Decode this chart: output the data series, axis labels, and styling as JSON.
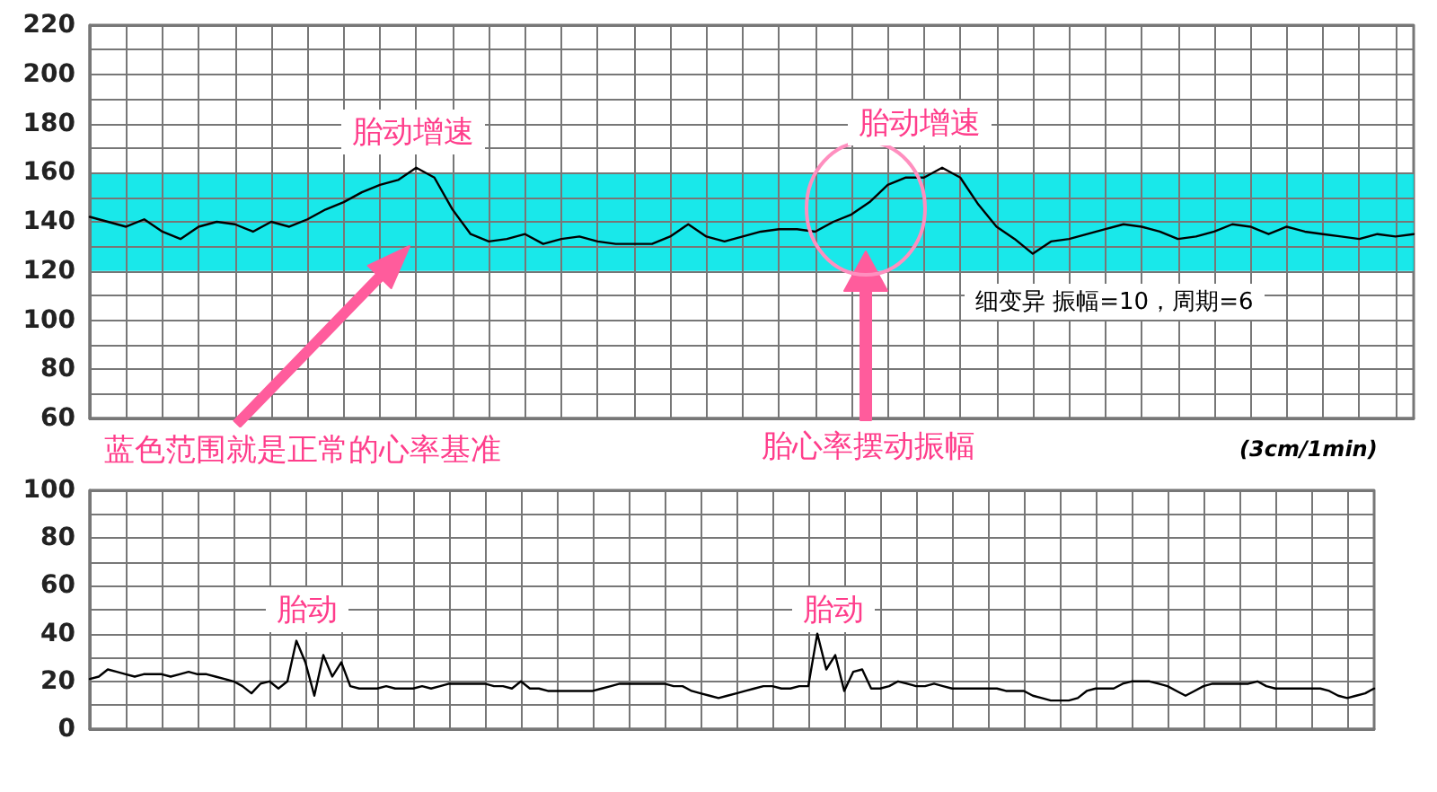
{
  "chart_data": [
    {
      "type": "line",
      "categories": [
        null,
        null,
        null,
        null,
        null,
        null,
        null,
        null,
        null,
        null,
        null,
        null,
        null,
        null,
        null,
        null,
        null,
        null,
        null,
        null,
        null,
        null,
        null,
        null,
        null,
        null,
        null,
        null,
        null,
        null,
        null,
        null,
        null,
        null,
        null,
        null,
        null,
        null,
        null,
        null,
        null,
        null,
        null,
        null,
        null,
        null,
        null,
        null,
        null,
        null,
        null,
        null,
        null,
        null,
        null,
        null,
        null,
        null,
        null,
        null,
        null,
        null,
        null,
        null,
        null,
        null,
        null,
        null,
        null,
        null,
        null,
        null,
        null,
        null
      ],
      "series": [
        {
          "color": "#000000",
          "values": [
            142,
            140,
            138,
            141,
            136,
            133,
            138,
            140,
            139,
            136,
            140,
            138,
            141,
            145,
            148,
            152,
            155,
            157,
            162,
            158,
            145,
            135,
            132,
            133,
            135,
            131,
            133,
            134,
            132,
            131,
            131,
            131,
            134,
            139,
            134,
            132,
            134,
            136,
            137,
            137,
            136,
            140,
            143,
            148,
            155,
            158,
            158,
            162,
            158,
            147,
            138,
            133,
            127,
            132,
            133,
            135,
            137,
            139,
            138,
            136,
            133,
            134,
            136,
            139,
            138,
            135,
            138,
            136,
            135,
            134,
            133,
            135,
            134,
            135
          ]
        }
      ],
      "ylim": [
        60,
        220
      ],
      "yticks": [
        60,
        {
          "value": 70,
          "label": null
        },
        80,
        {
          "value": 90,
          "label": null
        },
        100,
        {
          "value": 110,
          "label": null
        },
        120,
        {
          "value": 130,
          "label": null
        },
        140,
        {
          "value": 150,
          "label": null
        },
        160,
        {
          "value": 170,
          "label": null
        },
        180,
        {
          "value": 190,
          "label": null
        },
        200,
        {
          "value": 210,
          "label": null
        },
        220
      ],
      "bands": [
        {
          "axis": "y",
          "from": 120,
          "to": 160,
          "color": "#00e5e8"
        }
      ],
      "annotations": [
        "胎动增速",
        "胎动增速",
        "蓝色范围就是正常的心率基准",
        "胎心率摆动振幅",
        "细变异  振幅=10，周期=6",
        "(3cm/1min)"
      ],
      "grid": true,
      "tick_labels": "y",
      "marker": "none",
      "line_style": "solid"
    },
    {
      "type": "line",
      "categories": [
        null,
        null,
        null,
        null,
        null,
        null,
        null,
        null,
        null,
        null,
        null,
        null,
        null,
        null,
        null,
        null,
        null,
        null,
        null,
        null,
        null,
        null,
        null,
        null,
        null,
        null,
        null,
        null,
        null,
        null,
        null,
        null,
        null,
        null,
        null,
        null,
        null,
        null,
        null,
        null,
        null,
        null,
        null,
        null,
        null,
        null,
        null,
        null,
        null,
        null,
        null,
        null,
        null,
        null,
        null,
        null,
        null,
        null,
        null,
        null,
        null,
        null,
        null,
        null,
        null,
        null,
        null,
        null,
        null,
        null,
        null,
        null,
        null,
        null,
        null,
        null,
        null,
        null,
        null,
        null,
        null,
        null,
        null,
        null,
        null,
        null,
        null,
        null,
        null,
        null,
        null,
        null,
        null,
        null,
        null,
        null,
        null,
        null,
        null,
        null,
        null,
        null,
        null,
        null,
        null,
        null,
        null,
        null,
        null,
        null,
        null,
        null,
        null,
        null,
        null,
        null,
        null,
        null,
        null,
        null,
        null,
        null,
        null,
        null,
        null,
        null,
        null,
        null,
        null,
        null,
        null,
        null,
        null,
        null,
        null,
        null,
        null,
        null,
        null,
        null,
        null,
        null,
        null,
        null
      ],
      "series": [
        {
          "color": "#000000",
          "values": [
            21,
            22,
            25,
            24,
            23,
            22,
            23,
            23,
            23,
            22,
            23,
            24,
            23,
            23,
            22,
            21,
            20,
            18,
            15,
            19,
            20,
            17,
            20,
            37,
            28,
            14,
            31,
            22,
            28,
            18,
            17,
            17,
            17,
            18,
            17,
            17,
            17,
            18,
            17,
            18,
            19,
            19,
            19,
            19,
            19,
            18,
            18,
            17,
            20,
            17,
            17,
            16,
            16,
            16,
            16,
            16,
            16,
            17,
            18,
            19,
            19,
            19,
            19,
            19,
            19,
            18,
            18,
            16,
            15,
            14,
            13,
            14,
            15,
            16,
            17,
            18,
            18,
            17,
            17,
            18,
            18,
            40,
            25,
            31,
            16,
            24,
            25,
            17,
            17,
            18,
            20,
            19,
            18,
            18,
            19,
            18,
            17,
            17,
            17,
            17,
            17,
            17,
            16,
            16,
            16,
            14,
            13,
            12,
            12,
            12,
            13,
            16,
            17,
            17,
            17,
            19,
            20,
            20,
            20,
            19,
            18,
            16,
            14,
            16,
            18,
            19,
            19,
            19,
            19,
            19,
            20,
            18,
            17,
            17,
            17,
            17,
            17,
            17,
            16,
            14,
            13,
            14,
            15,
            17
          ]
        }
      ],
      "ylim": [
        0,
        100
      ],
      "yticks": [
        0,
        {
          "value": 10,
          "label": null
        },
        20,
        {
          "value": 30,
          "label": null
        },
        40,
        {
          "value": 50,
          "label": null
        },
        60,
        {
          "value": 70,
          "label": null
        },
        80,
        {
          "value": 90,
          "label": null
        },
        100
      ],
      "annotations": [
        "胎动",
        "胎动"
      ],
      "grid": true,
      "tick_labels": "y",
      "marker": "none",
      "line_style": "solid"
    }
  ]
}
